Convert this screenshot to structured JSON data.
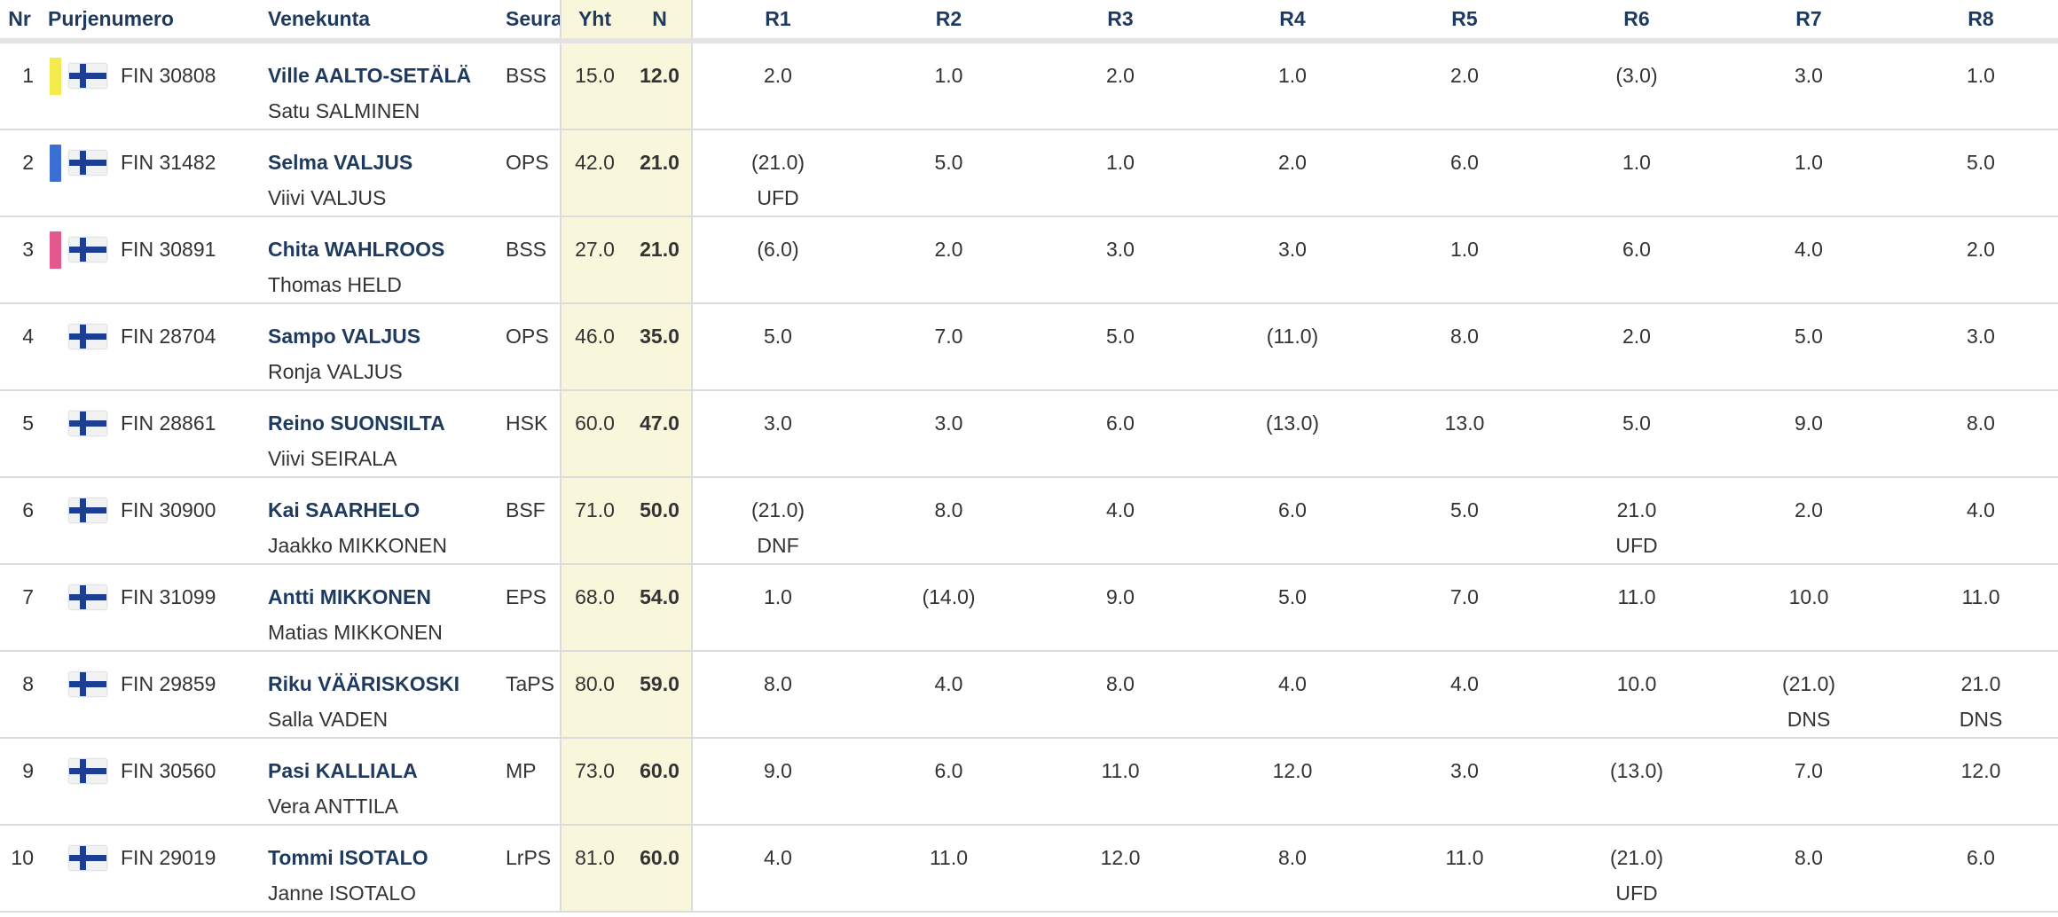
{
  "headers": {
    "nr": "Nr",
    "sail": "Purjenumero",
    "crew": "Venekunta",
    "club": "Seura",
    "total": "Yht",
    "net": "N",
    "races": [
      "R1",
      "R2",
      "R3",
      "R4",
      "R5",
      "R6",
      "R7",
      "R8"
    ]
  },
  "colors": {
    "header_text": "#1e3a5f",
    "score_bg": "#f8f7dc",
    "finland_blue": "#1c3f94"
  },
  "rows": [
    {
      "nr": "1",
      "flag": "finland-flag-icon",
      "marker_color": "#f4ec4f",
      "sail": "FIN 30808",
      "skipper": "Ville AALTO-SETÄLÄ",
      "crew": "Satu SALMINEN",
      "club": "BSS",
      "total": "15.0",
      "net": "12.0",
      "races": [
        {
          "score": "2.0",
          "code": ""
        },
        {
          "score": "1.0",
          "code": ""
        },
        {
          "score": "2.0",
          "code": ""
        },
        {
          "score": "1.0",
          "code": ""
        },
        {
          "score": "2.0",
          "code": ""
        },
        {
          "score": "(3.0)",
          "code": ""
        },
        {
          "score": "3.0",
          "code": ""
        },
        {
          "score": "1.0",
          "code": ""
        }
      ]
    },
    {
      "nr": "2",
      "flag": "finland-flag-icon",
      "marker_color": "#3b6fd4",
      "sail": "FIN 31482",
      "skipper": "Selma VALJUS",
      "crew": "Viivi VALJUS",
      "club": "OPS",
      "total": "42.0",
      "net": "21.0",
      "races": [
        {
          "score": "(21.0)",
          "code": "UFD"
        },
        {
          "score": "5.0",
          "code": ""
        },
        {
          "score": "1.0",
          "code": ""
        },
        {
          "score": "2.0",
          "code": ""
        },
        {
          "score": "6.0",
          "code": ""
        },
        {
          "score": "1.0",
          "code": ""
        },
        {
          "score": "1.0",
          "code": ""
        },
        {
          "score": "5.0",
          "code": ""
        }
      ]
    },
    {
      "nr": "3",
      "flag": "finland-flag-icon",
      "marker_color": "#e4588e",
      "sail": "FIN 30891",
      "skipper": "Chita WAHLROOS",
      "crew": "Thomas HELD",
      "club": "BSS",
      "total": "27.0",
      "net": "21.0",
      "races": [
        {
          "score": "(6.0)",
          "code": ""
        },
        {
          "score": "2.0",
          "code": ""
        },
        {
          "score": "3.0",
          "code": ""
        },
        {
          "score": "3.0",
          "code": ""
        },
        {
          "score": "1.0",
          "code": ""
        },
        {
          "score": "6.0",
          "code": ""
        },
        {
          "score": "4.0",
          "code": ""
        },
        {
          "score": "2.0",
          "code": ""
        }
      ]
    },
    {
      "nr": "4",
      "flag": "finland-flag-icon",
      "marker_color": "",
      "sail": "FIN 28704",
      "skipper": "Sampo VALJUS",
      "crew": "Ronja VALJUS",
      "club": "OPS",
      "total": "46.0",
      "net": "35.0",
      "races": [
        {
          "score": "5.0",
          "code": ""
        },
        {
          "score": "7.0",
          "code": ""
        },
        {
          "score": "5.0",
          "code": ""
        },
        {
          "score": "(11.0)",
          "code": ""
        },
        {
          "score": "8.0",
          "code": ""
        },
        {
          "score": "2.0",
          "code": ""
        },
        {
          "score": "5.0",
          "code": ""
        },
        {
          "score": "3.0",
          "code": ""
        }
      ]
    },
    {
      "nr": "5",
      "flag": "finland-flag-icon",
      "marker_color": "",
      "sail": "FIN 28861",
      "skipper": "Reino SUONSILTA",
      "crew": "Viivi SEIRALA",
      "club": "HSK",
      "total": "60.0",
      "net": "47.0",
      "races": [
        {
          "score": "3.0",
          "code": ""
        },
        {
          "score": "3.0",
          "code": ""
        },
        {
          "score": "6.0",
          "code": ""
        },
        {
          "score": "(13.0)",
          "code": ""
        },
        {
          "score": "13.0",
          "code": ""
        },
        {
          "score": "5.0",
          "code": ""
        },
        {
          "score": "9.0",
          "code": ""
        },
        {
          "score": "8.0",
          "code": ""
        }
      ]
    },
    {
      "nr": "6",
      "flag": "finland-flag-icon",
      "marker_color": "",
      "sail": "FIN 30900",
      "skipper": "Kai SAARHELO",
      "crew": "Jaakko MIKKONEN",
      "club": "BSF",
      "total": "71.0",
      "net": "50.0",
      "races": [
        {
          "score": "(21.0)",
          "code": "DNF"
        },
        {
          "score": "8.0",
          "code": ""
        },
        {
          "score": "4.0",
          "code": ""
        },
        {
          "score": "6.0",
          "code": ""
        },
        {
          "score": "5.0",
          "code": ""
        },
        {
          "score": "21.0",
          "code": "UFD"
        },
        {
          "score": "2.0",
          "code": ""
        },
        {
          "score": "4.0",
          "code": ""
        }
      ]
    },
    {
      "nr": "7",
      "flag": "finland-flag-icon",
      "marker_color": "",
      "sail": "FIN 31099",
      "skipper": "Antti MIKKONEN",
      "crew": "Matias MIKKONEN",
      "club": "EPS",
      "total": "68.0",
      "net": "54.0",
      "races": [
        {
          "score": "1.0",
          "code": ""
        },
        {
          "score": "(14.0)",
          "code": ""
        },
        {
          "score": "9.0",
          "code": ""
        },
        {
          "score": "5.0",
          "code": ""
        },
        {
          "score": "7.0",
          "code": ""
        },
        {
          "score": "11.0",
          "code": ""
        },
        {
          "score": "10.0",
          "code": ""
        },
        {
          "score": "11.0",
          "code": ""
        }
      ]
    },
    {
      "nr": "8",
      "flag": "finland-flag-icon",
      "marker_color": "",
      "sail": "FIN 29859",
      "skipper": "Riku VÄÄRISKOSKI",
      "crew": "Salla VADEN",
      "club": "TaPS",
      "total": "80.0",
      "net": "59.0",
      "races": [
        {
          "score": "8.0",
          "code": ""
        },
        {
          "score": "4.0",
          "code": ""
        },
        {
          "score": "8.0",
          "code": ""
        },
        {
          "score": "4.0",
          "code": ""
        },
        {
          "score": "4.0",
          "code": ""
        },
        {
          "score": "10.0",
          "code": ""
        },
        {
          "score": "(21.0)",
          "code": "DNS"
        },
        {
          "score": "21.0",
          "code": "DNS"
        }
      ]
    },
    {
      "nr": "9",
      "flag": "finland-flag-icon",
      "marker_color": "",
      "sail": "FIN 30560",
      "skipper": "Pasi KALLIALA",
      "crew": "Vera ANTTILA",
      "club": "MP",
      "total": "73.0",
      "net": "60.0",
      "races": [
        {
          "score": "9.0",
          "code": ""
        },
        {
          "score": "6.0",
          "code": ""
        },
        {
          "score": "11.0",
          "code": ""
        },
        {
          "score": "12.0",
          "code": ""
        },
        {
          "score": "3.0",
          "code": ""
        },
        {
          "score": "(13.0)",
          "code": ""
        },
        {
          "score": "7.0",
          "code": ""
        },
        {
          "score": "12.0",
          "code": ""
        }
      ]
    },
    {
      "nr": "10",
      "flag": "finland-flag-icon",
      "marker_color": "",
      "sail": "FIN 29019",
      "skipper": "Tommi ISOTALO",
      "crew": "Janne ISOTALO",
      "club": "LrPS",
      "total": "81.0",
      "net": "60.0",
      "races": [
        {
          "score": "4.0",
          "code": ""
        },
        {
          "score": "11.0",
          "code": ""
        },
        {
          "score": "12.0",
          "code": ""
        },
        {
          "score": "8.0",
          "code": ""
        },
        {
          "score": "11.0",
          "code": ""
        },
        {
          "score": "(21.0)",
          "code": "UFD"
        },
        {
          "score": "8.0",
          "code": ""
        },
        {
          "score": "6.0",
          "code": ""
        }
      ]
    }
  ]
}
